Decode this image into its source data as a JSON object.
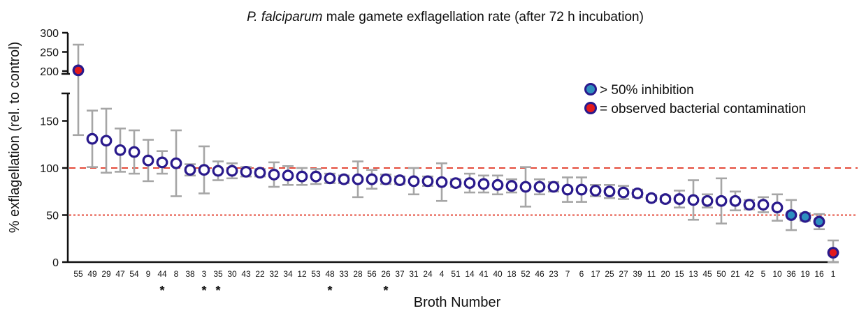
{
  "chart_data": {
    "type": "scatter",
    "title_italic": "P. falciparum",
    "title_rest": " male gamete exflagellation rate (after 72 h incubation)",
    "xlabel": "Broth Number",
    "ylabel": "% exflagellation (rel. to control)",
    "yaxis_lower": {
      "ylim": [
        0,
        180
      ],
      "ticks": [
        "0",
        "50",
        "100",
        "150"
      ]
    },
    "yaxis_upper": {
      "ylim": [
        200,
        300
      ],
      "ticks": [
        "200",
        "250",
        "300"
      ]
    },
    "axis_break": true,
    "reference_lines": [
      {
        "y": 100,
        "style": "dashed",
        "color": "#e0301e"
      },
      {
        "y": 50,
        "style": "dotted",
        "color": "#e0301e"
      }
    ],
    "marker_colors": {
      "normal_fill": "#ffffff",
      "normal_stroke": "#2a1a8c",
      "inhibition_fill": "#2e8fbf",
      "contamination_fill": "#e31a1c",
      "error_bar": "#a6a6a6"
    },
    "legend": {
      "position": "right",
      "entries": [
        {
          "label": "> 50% inhibition",
          "marker": "inhibition"
        },
        {
          "label": "= observed bacterial contamination",
          "marker": "contamination"
        }
      ]
    },
    "categories": [
      "55",
      "49",
      "29",
      "47",
      "54",
      "9",
      "44",
      "8",
      "38",
      "3",
      "35",
      "30",
      "43",
      "22",
      "32",
      "34",
      "12",
      "53",
      "48",
      "33",
      "28",
      "56",
      "26",
      "37",
      "31",
      "24",
      "4",
      "51",
      "14",
      "41",
      "40",
      "18",
      "52",
      "46",
      "23",
      "7",
      "6",
      "17",
      "25",
      "27",
      "39",
      "11",
      "20",
      "15",
      "13",
      "45",
      "50",
      "21",
      "42",
      "5",
      "10",
      "36",
      "19",
      "16",
      "1"
    ],
    "values": [
      202,
      131,
      129,
      119,
      117,
      108,
      106,
      105,
      98,
      98,
      97,
      97,
      96,
      95,
      93,
      92,
      91,
      91,
      89,
      88,
      88,
      88,
      88,
      87,
      86,
      86,
      85,
      84,
      84,
      83,
      82,
      81,
      80,
      80,
      80,
      77,
      77,
      76,
      75,
      74,
      73,
      68,
      67,
      67,
      66,
      65,
      65,
      65,
      61,
      61,
      58,
      50,
      48,
      43,
      10
    ],
    "errors": [
      67,
      30,
      34,
      23,
      23,
      22,
      12,
      35,
      6,
      25,
      10,
      8,
      5,
      4,
      13,
      10,
      9,
      8,
      5,
      4,
      19,
      10,
      5,
      4,
      14,
      5,
      20,
      4,
      10,
      9,
      10,
      7,
      21,
      8,
      5,
      13,
      13,
      6,
      7,
      7,
      4,
      3,
      3,
      9,
      21,
      7,
      24,
      10,
      5,
      8,
      14,
      16,
      4,
      8,
      13
    ],
    "marker_types": [
      "contamination",
      "normal",
      "normal",
      "normal",
      "normal",
      "normal",
      "normal",
      "normal",
      "normal",
      "normal",
      "normal",
      "normal",
      "normal",
      "normal",
      "normal",
      "normal",
      "normal",
      "normal",
      "normal",
      "normal",
      "normal",
      "normal",
      "normal",
      "normal",
      "normal",
      "normal",
      "normal",
      "normal",
      "normal",
      "normal",
      "normal",
      "normal",
      "normal",
      "normal",
      "normal",
      "normal",
      "normal",
      "normal",
      "normal",
      "normal",
      "normal",
      "normal",
      "normal",
      "normal",
      "normal",
      "normal",
      "normal",
      "normal",
      "normal",
      "normal",
      "normal",
      "inhibition",
      "inhibition",
      "inhibition",
      "contamination"
    ],
    "asterisks": [
      "44",
      "3",
      "35",
      "48",
      "26"
    ]
  }
}
